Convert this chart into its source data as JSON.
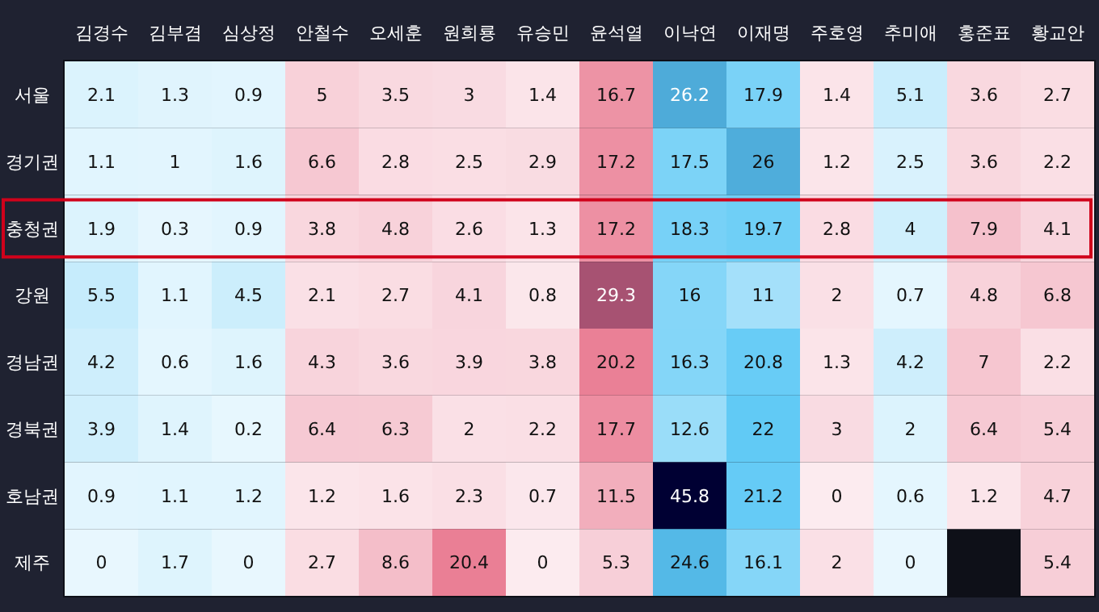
{
  "chart_data": {
    "type": "heatmap",
    "categories": [
      "김경수",
      "김부겸",
      "심상정",
      "안철수",
      "오세훈",
      "원희룡",
      "유승민",
      "윤석열",
      "이낙연",
      "이재명",
      "주호영",
      "추미애",
      "홍준표",
      "황교안"
    ],
    "y_categories": [
      "서울",
      "경기권",
      "충청권",
      "강원",
      "경남권",
      "경북권",
      "호남권",
      "제주"
    ],
    "colors": [
      "#5bc8f5",
      "#5bc8f5",
      "#5bc8f5",
      "#e8728a",
      "#e8728a",
      "#e8728a",
      "#e8728a",
      "#e8728a",
      "#5bc8f5",
      "#5bc8f5",
      "#e8728a",
      "#5bc8f5",
      "#e8728a",
      "#e8728a"
    ],
    "cells": [
      [
        2.1,
        1.3,
        0.9,
        5,
        3.5,
        3,
        1.4,
        16.7,
        26.2,
        17.9,
        1.4,
        5.1,
        3.6,
        2.7
      ],
      [
        1.1,
        1,
        1.6,
        6.6,
        2.8,
        2.5,
        2.9,
        17.2,
        17.5,
        26,
        1.2,
        2.5,
        3.6,
        2.2
      ],
      [
        1.9,
        0.3,
        0.9,
        3.8,
        4.8,
        2.6,
        1.3,
        17.2,
        18.3,
        19.7,
        2.8,
        4,
        7.9,
        4.1
      ],
      [
        5.5,
        1.1,
        4.5,
        2.1,
        2.7,
        4.1,
        0.8,
        29.3,
        16,
        11,
        2,
        0.7,
        4.8,
        6.8
      ],
      [
        4.2,
        0.6,
        1.6,
        4.3,
        3.6,
        3.9,
        3.8,
        20.2,
        16.3,
        20.8,
        1.3,
        4.2,
        7,
        2.2
      ],
      [
        3.9,
        1.4,
        0.2,
        6.4,
        6.3,
        2,
        2.2,
        17.7,
        12.6,
        22,
        3,
        2,
        6.4,
        5.4
      ],
      [
        0.9,
        1.1,
        1.2,
        1.2,
        1.6,
        2.3,
        0.7,
        11.5,
        45.8,
        21.2,
        0,
        0.6,
        1.2,
        4.7
      ],
      [
        0,
        1.7,
        0,
        2.7,
        8.6,
        20.4,
        0,
        5.3,
        24.6,
        16.1,
        2,
        0,
        null,
        5.4
      ]
    ],
    "data_labels": true
  }
}
